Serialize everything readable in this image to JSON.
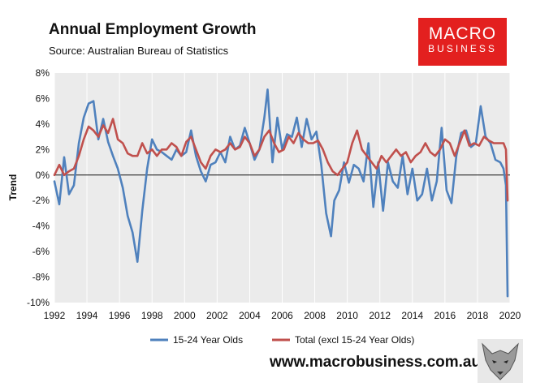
{
  "header": {
    "title": "Annual Employment Growth",
    "subtitle": "Source: Australian Bureau of Statistics"
  },
  "logo": {
    "line1": "MACRO",
    "line2": "BUSINESS"
  },
  "footer": {
    "website": "www.macrobusiness.com.au"
  },
  "colors": {
    "series_youth": "#4f81bd",
    "series_total": "#c0504d",
    "plot_bg": "#ebebeb",
    "logo_bg": "#e3201f"
  },
  "chart_data": {
    "type": "line",
    "title": "Annual Employment Growth",
    "xlabel": "",
    "ylabel": "Trend",
    "xlim": [
      1992,
      2020
    ],
    "ylim": [
      -10,
      8
    ],
    "x_ticks": [
      "1992",
      "1994",
      "1996",
      "1998",
      "2000",
      "2002",
      "2004",
      "2006",
      "2008",
      "2010",
      "2012",
      "2014",
      "2016",
      "2018",
      "2020"
    ],
    "y_ticks": [
      "8%",
      "6%",
      "4%",
      "2%",
      "0%",
      "-2%",
      "-4%",
      "-6%",
      "-8%",
      "-10%"
    ],
    "legend_position": "bottom",
    "series": [
      {
        "name": "15-24 Year Olds",
        "x": [
          1992.0,
          1992.3,
          1992.6,
          1992.9,
          1993.2,
          1993.5,
          1993.8,
          1994.1,
          1994.4,
          1994.7,
          1995.0,
          1995.3,
          1995.6,
          1995.9,
          1996.2,
          1996.5,
          1996.8,
          1997.1,
          1997.4,
          1997.7,
          1998.0,
          1998.3,
          1998.6,
          1998.9,
          1999.2,
          1999.5,
          1999.8,
          2000.1,
          2000.4,
          2000.7,
          2001.0,
          2001.3,
          2001.6,
          2001.9,
          2002.2,
          2002.5,
          2002.8,
          2003.1,
          2003.4,
          2003.7,
          2004.0,
          2004.3,
          2004.6,
          2004.9,
          2005.1,
          2005.4,
          2005.7,
          2006.0,
          2006.3,
          2006.6,
          2006.9,
          2007.2,
          2007.5,
          2007.8,
          2008.1,
          2008.4,
          2008.7,
          2009.0,
          2009.2,
          2009.5,
          2009.8,
          2010.1,
          2010.4,
          2010.7,
          2011.0,
          2011.3,
          2011.6,
          2011.9,
          2012.2,
          2012.5,
          2012.8,
          2013.1,
          2013.4,
          2013.7,
          2014.0,
          2014.3,
          2014.6,
          2014.9,
          2015.2,
          2015.5,
          2015.8,
          2016.1,
          2016.4,
          2016.7,
          2017.0,
          2017.3,
          2017.6,
          2017.9,
          2018.2,
          2018.5,
          2018.8,
          2019.1,
          2019.4,
          2019.6,
          2019.75,
          2019.85
        ],
        "values": [
          -0.5,
          -2.3,
          1.4,
          -1.5,
          -0.8,
          2.5,
          4.5,
          5.6,
          5.8,
          2.8,
          4.4,
          2.6,
          1.5,
          0.5,
          -1.0,
          -3.2,
          -4.5,
          -6.8,
          -2.8,
          0.5,
          2.8,
          2.0,
          1.8,
          1.5,
          1.2,
          2.0,
          1.5,
          1.8,
          3.5,
          1.5,
          0.3,
          -0.5,
          0.8,
          1.0,
          1.8,
          1.0,
          3.0,
          2.0,
          2.3,
          3.7,
          2.5,
          1.2,
          2.0,
          4.5,
          6.7,
          1.0,
          4.5,
          2.0,
          3.2,
          3.0,
          4.5,
          2.2,
          4.4,
          2.8,
          3.4,
          0.8,
          -3.0,
          -4.8,
          -2.0,
          -1.2,
          1.0,
          -0.6,
          0.8,
          0.5,
          -0.5,
          2.5,
          -2.5,
          1.0,
          -2.8,
          1.0,
          -0.5,
          -1.0,
          1.5,
          -1.5,
          0.5,
          -2.0,
          -1.5,
          0.5,
          -2.0,
          -0.5,
          3.7,
          -1.2,
          -2.2,
          1.5,
          3.3,
          3.5,
          2.2,
          2.5,
          5.4,
          3.0,
          2.5,
          1.2,
          1.0,
          0.5,
          -0.8,
          -9.5
        ]
      },
      {
        "name": "Total (excl 15-24 Year Olds)",
        "x": [
          1992.0,
          1992.3,
          1992.6,
          1992.9,
          1993.2,
          1993.5,
          1993.8,
          1994.1,
          1994.4,
          1994.7,
          1995.0,
          1995.3,
          1995.6,
          1995.9,
          1996.2,
          1996.5,
          1996.8,
          1997.1,
          1997.4,
          1997.7,
          1998.0,
          1998.3,
          1998.6,
          1998.9,
          1999.2,
          1999.5,
          1999.8,
          2000.1,
          2000.4,
          2000.7,
          2001.0,
          2001.3,
          2001.6,
          2001.9,
          2002.2,
          2002.5,
          2002.8,
          2003.1,
          2003.4,
          2003.7,
          2004.0,
          2004.3,
          2004.6,
          2004.9,
          2005.2,
          2005.5,
          2005.8,
          2006.1,
          2006.4,
          2006.7,
          2007.0,
          2007.3,
          2007.6,
          2007.9,
          2008.2,
          2008.5,
          2008.8,
          2009.1,
          2009.4,
          2009.7,
          2010.0,
          2010.3,
          2010.6,
          2010.9,
          2011.2,
          2011.5,
          2011.8,
          2012.1,
          2012.4,
          2012.7,
          2013.0,
          2013.3,
          2013.6,
          2013.9,
          2014.2,
          2014.5,
          2014.8,
          2015.1,
          2015.4,
          2015.7,
          2016.0,
          2016.3,
          2016.6,
          2016.9,
          2017.2,
          2017.5,
          2017.8,
          2018.1,
          2018.4,
          2018.7,
          2019.0,
          2019.3,
          2019.6,
          2019.75,
          2019.85
        ],
        "values": [
          0.0,
          0.8,
          0.0,
          0.3,
          0.5,
          1.5,
          2.8,
          3.8,
          3.5,
          3.0,
          3.9,
          3.3,
          4.4,
          2.8,
          2.5,
          1.7,
          1.5,
          1.5,
          2.5,
          1.7,
          2.0,
          1.5,
          2.0,
          2.0,
          2.5,
          2.2,
          1.5,
          2.6,
          3.0,
          2.0,
          1.0,
          0.5,
          1.5,
          2.0,
          1.8,
          2.0,
          2.5,
          2.0,
          2.2,
          3.0,
          2.5,
          1.5,
          2.0,
          3.0,
          3.5,
          2.5,
          1.8,
          2.0,
          3.0,
          2.5,
          3.3,
          2.8,
          2.5,
          2.5,
          2.7,
          2.0,
          1.0,
          0.3,
          0.0,
          0.5,
          1.0,
          2.5,
          3.5,
          2.0,
          1.5,
          1.0,
          0.5,
          1.5,
          1.0,
          1.5,
          2.0,
          1.5,
          1.8,
          1.0,
          1.5,
          1.8,
          2.5,
          1.8,
          1.5,
          2.0,
          2.8,
          2.5,
          1.5,
          2.5,
          3.5,
          2.3,
          2.5,
          2.3,
          3.0,
          2.7,
          2.5,
          2.5,
          2.5,
          2.0,
          -2.0
        ]
      }
    ]
  }
}
